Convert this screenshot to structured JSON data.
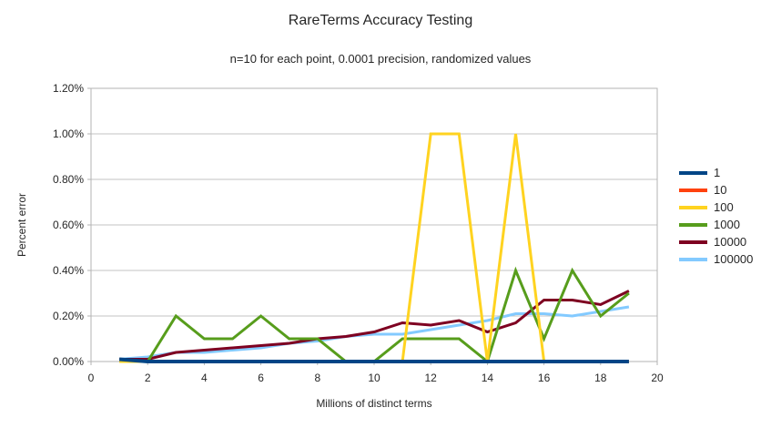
{
  "title": "RareTerms Accuracy Testing",
  "subtitle": "n=10 for each point, 0.0001 precision, randomized values",
  "chart_data": {
    "type": "line",
    "title": "RareTerms Accuracy Testing",
    "subtitle": "n=10 for each point, 0.0001 precision, randomized values",
    "xlabel": "Millions of distinct terms",
    "ylabel": "Percent error",
    "xlim": [
      0,
      20
    ],
    "ylim_percent": [
      0.0,
      1.2
    ],
    "grid": true,
    "legend_position": "right",
    "x_tick_labels": [
      "0",
      "2",
      "4",
      "6",
      "8",
      "10",
      "12",
      "14",
      "16",
      "18",
      "20"
    ],
    "x_tick_values": [
      0,
      2,
      4,
      6,
      8,
      10,
      12,
      14,
      16,
      18,
      20
    ],
    "y_tick_labels": [
      "0.00%",
      "0.20%",
      "0.40%",
      "0.60%",
      "0.80%",
      "1.00%",
      "1.20%"
    ],
    "y_tick_values": [
      0.0,
      0.2,
      0.4,
      0.6,
      0.8,
      1.0,
      1.2
    ],
    "x": [
      1,
      2,
      3,
      4,
      5,
      6,
      7,
      8,
      9,
      10,
      11,
      12,
      13,
      14,
      15,
      16,
      17,
      18,
      19
    ],
    "series": [
      {
        "name": "1",
        "color": "#004586",
        "values": [
          0.01,
          0.0,
          0.0,
          0.0,
          0.0,
          0.0,
          0.0,
          0.0,
          0.0,
          0.0,
          0.0,
          0.0,
          0.0,
          0.0,
          0.0,
          0.0,
          0.0,
          0.0,
          0.0
        ]
      },
      {
        "name": "10",
        "color": "#FF420E",
        "values": [
          0.01,
          0.0,
          0.0,
          0.0,
          0.0,
          0.0,
          0.0,
          0.0,
          0.0,
          0.0,
          0.0,
          0.0,
          0.0,
          0.0,
          0.0,
          0.0,
          0.0,
          0.0,
          0.0
        ]
      },
      {
        "name": "100",
        "color": "#FFD320",
        "values": [
          0.0,
          0.0,
          0.0,
          0.0,
          0.0,
          0.0,
          0.0,
          0.0,
          0.0,
          0.0,
          0.0,
          1.0,
          1.0,
          0.0,
          1.0,
          0.0,
          0.0,
          0.0,
          0.0
        ]
      },
      {
        "name": "1000",
        "color": "#579D1C",
        "values": [
          0.01,
          0.0,
          0.2,
          0.1,
          0.1,
          0.2,
          0.1,
          0.1,
          0.0,
          0.0,
          0.1,
          0.1,
          0.1,
          0.0,
          0.4,
          0.1,
          0.4,
          0.2,
          0.3
        ]
      },
      {
        "name": "10000",
        "color": "#7E0021",
        "values": [
          0.01,
          0.01,
          0.04,
          0.05,
          0.06,
          0.07,
          0.08,
          0.1,
          0.11,
          0.13,
          0.17,
          0.16,
          0.18,
          0.13,
          0.17,
          0.27,
          0.27,
          0.25,
          0.31
        ]
      },
      {
        "name": "100000",
        "color": "#83CAFF",
        "values": [
          0.01,
          0.02,
          0.04,
          0.04,
          0.05,
          0.06,
          0.08,
          0.09,
          0.11,
          0.12,
          0.12,
          0.14,
          0.16,
          0.18,
          0.21,
          0.21,
          0.2,
          0.22,
          0.24
        ]
      }
    ],
    "colors": {
      "grid": "#c3c3c3",
      "axis": "#b3b3b3",
      "text": "#262626",
      "background": "#ffffff"
    }
  }
}
